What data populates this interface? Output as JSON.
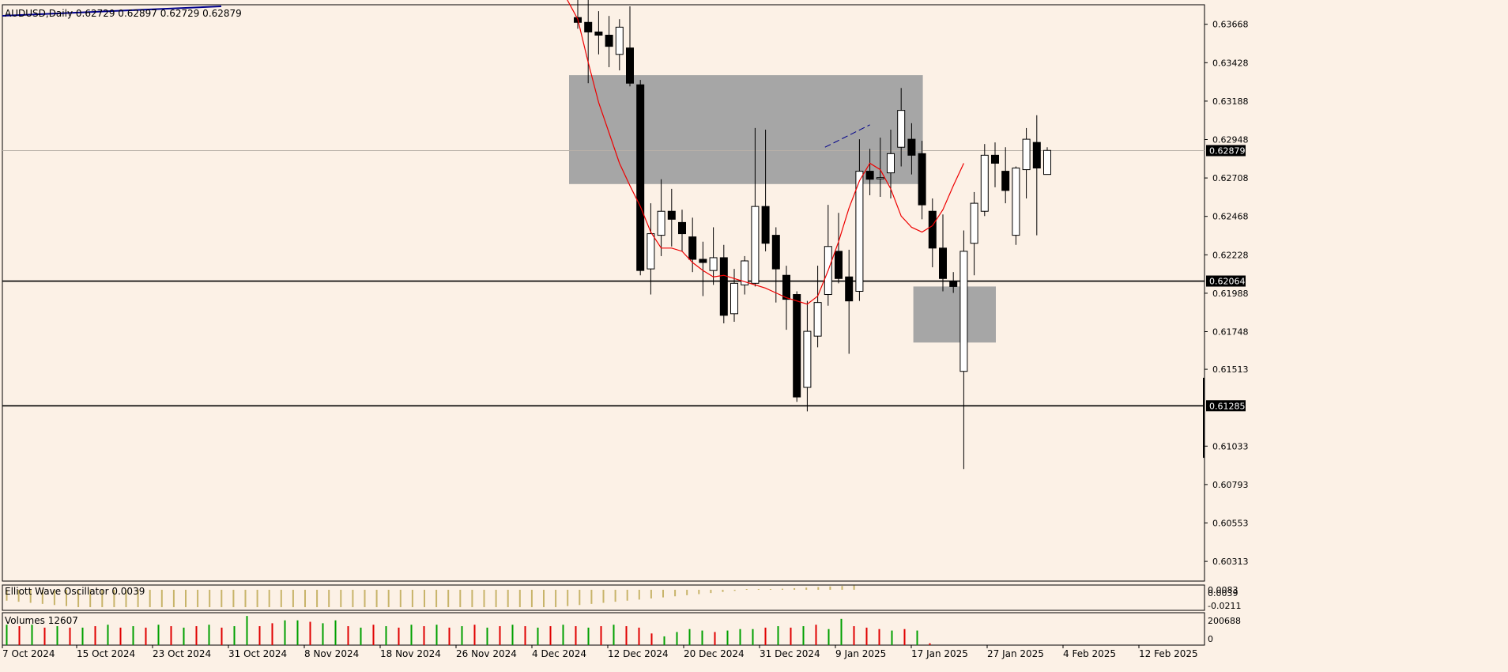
{
  "header": {
    "text": "AUDUSD,Daily  0.62729 0.62897 0.62729 0.62879"
  },
  "colors": {
    "background": "#fcf1e6",
    "frame": "#000000",
    "bull_fill": "#ffffff",
    "bear_fill": "#000000",
    "ma_line": "#ee0000",
    "zone_fill": "#a6a6a6",
    "trend_line": "#00008b",
    "ewo_bar": "#c8b46a",
    "vol_up": "#00a000",
    "vol_down": "#e00000",
    "price_label_bg": "#000000",
    "price_label_text": "#ffffff"
  },
  "chart_data": [
    {
      "type": "candlestick",
      "symbol": "AUDUSD",
      "timeframe": "Daily",
      "ylim": [
        0.6019,
        0.6379
      ],
      "price_axis_ticks": [
        "0.63668",
        "0.63428",
        "0.63188",
        "0.62948",
        "0.62708",
        "0.62468",
        "0.62228",
        "0.61988",
        "0.61748",
        "0.61513",
        "0.61033",
        "0.60793",
        "0.60553",
        "0.60313"
      ],
      "highlighted_prices": [
        "0.62879",
        "0.62064",
        "0.61285"
      ],
      "current_price": 0.62879,
      "horizontal_lines": [
        0.62064,
        0.61285
      ],
      "zones": [
        {
          "from_index": 0,
          "to_index": 33,
          "low": 0.6267,
          "high": 0.6335
        },
        {
          "from_index": 33,
          "to_index": 40,
          "low": 0.6168,
          "high": 0.6203
        }
      ],
      "trend_segment": {
        "from": [
          24,
          0.629
        ],
        "to": [
          28,
          0.6304
        ]
      },
      "date_labels": [
        "7 Oct 2024",
        "15 Oct 2024",
        "23 Oct 2024",
        "31 Oct 2024",
        "8 Nov 2024",
        "18 Nov 2024",
        "26 Nov 2024",
        "4 Dec 2024",
        "12 Dec 2024",
        "20 Dec 2024",
        "31 Dec 2024",
        "9 Jan 2025",
        "17 Jan 2025",
        "27 Jan 2025",
        "4 Feb 2025",
        "12 Feb 2025"
      ],
      "ohlc": [
        [
          0.6371,
          0.6387,
          0.6364,
          0.6368
        ],
        [
          0.6368,
          0.6388,
          0.633,
          0.6362
        ],
        [
          0.6362,
          0.6375,
          0.6348,
          0.636
        ],
        [
          0.636,
          0.6372,
          0.634,
          0.6353
        ],
        [
          0.6348,
          0.637,
          0.6338,
          0.6365
        ],
        [
          0.6352,
          0.6378,
          0.6328,
          0.633
        ],
        [
          0.6329,
          0.6332,
          0.621,
          0.6213
        ],
        [
          0.6214,
          0.6255,
          0.6198,
          0.6236
        ],
        [
          0.6235,
          0.627,
          0.6222,
          0.625
        ],
        [
          0.625,
          0.6264,
          0.6228,
          0.6245
        ],
        [
          0.6243,
          0.6251,
          0.6225,
          0.6236
        ],
        [
          0.6234,
          0.6246,
          0.6212,
          0.622
        ],
        [
          0.622,
          0.6231,
          0.6197,
          0.6218
        ],
        [
          0.6213,
          0.624,
          0.6204,
          0.6221
        ],
        [
          0.6221,
          0.6229,
          0.618,
          0.6185
        ],
        [
          0.6186,
          0.6214,
          0.6181,
          0.6205
        ],
        [
          0.6204,
          0.6222,
          0.6198,
          0.6219
        ],
        [
          0.6205,
          0.6302,
          0.6203,
          0.6253
        ],
        [
          0.6253,
          0.6301,
          0.6225,
          0.623
        ],
        [
          0.6235,
          0.624,
          0.6193,
          0.6214
        ],
        [
          0.621,
          0.6216,
          0.6176,
          0.6195
        ],
        [
          0.6198,
          0.62,
          0.6131,
          0.6134
        ],
        [
          0.614,
          0.6194,
          0.6125,
          0.6175
        ],
        [
          0.6172,
          0.6216,
          0.6165,
          0.6193
        ],
        [
          0.6198,
          0.6254,
          0.6191,
          0.6228
        ],
        [
          0.6225,
          0.6249,
          0.6205,
          0.6208
        ],
        [
          0.6209,
          0.6226,
          0.6161,
          0.6194
        ],
        [
          0.62,
          0.6295,
          0.6194,
          0.6275
        ],
        [
          0.6275,
          0.6289,
          0.626,
          0.627
        ],
        [
          0.6271,
          0.6296,
          0.6259,
          0.6271
        ],
        [
          0.6274,
          0.6301,
          0.6258,
          0.6286
        ],
        [
          0.629,
          0.6327,
          0.6278,
          0.6313
        ],
        [
          0.6295,
          0.6305,
          0.6273,
          0.6285
        ],
        [
          0.6286,
          0.6294,
          0.6245,
          0.6254
        ],
        [
          0.625,
          0.6258,
          0.6215,
          0.6227
        ],
        [
          0.6227,
          0.6248,
          0.62,
          0.6208
        ],
        [
          0.6206,
          0.6212,
          0.6199,
          0.6203
        ],
        [
          0.615,
          0.6238,
          0.6089,
          0.6225
        ],
        [
          0.623,
          0.6262,
          0.621,
          0.6255
        ],
        [
          0.625,
          0.6292,
          0.6247,
          0.6285
        ],
        [
          0.6285,
          0.6293,
          0.6265,
          0.628
        ],
        [
          0.6275,
          0.629,
          0.6255,
          0.6263
        ],
        [
          0.6235,
          0.6278,
          0.6229,
          0.6277
        ],
        [
          0.6276,
          0.6302,
          0.6258,
          0.6295
        ],
        [
          0.6293,
          0.631,
          0.6235,
          0.6277
        ],
        [
          0.6273,
          0.629,
          0.6273,
          0.6288
        ]
      ],
      "ma_line": [
        [
          -1,
          0.6382
        ],
        [
          0,
          0.637
        ],
        [
          1,
          0.6343
        ],
        [
          2,
          0.6318
        ],
        [
          3,
          0.6299
        ],
        [
          4,
          0.628
        ],
        [
          5,
          0.6266
        ],
        [
          6,
          0.6253
        ],
        [
          7,
          0.6237
        ],
        [
          8,
          0.6227
        ],
        [
          9,
          0.6227
        ],
        [
          10,
          0.6225
        ],
        [
          11,
          0.6218
        ],
        [
          12,
          0.6213
        ],
        [
          13,
          0.6209
        ],
        [
          14,
          0.621
        ],
        [
          15,
          0.6208
        ],
        [
          16,
          0.6206
        ],
        [
          17,
          0.6204
        ],
        [
          18,
          0.6202
        ],
        [
          19,
          0.6199
        ],
        [
          20,
          0.6196
        ],
        [
          21,
          0.6194
        ],
        [
          22,
          0.6192
        ],
        [
          23,
          0.6197
        ],
        [
          24,
          0.6213
        ],
        [
          25,
          0.6231
        ],
        [
          26,
          0.6252
        ],
        [
          27,
          0.6269
        ],
        [
          28,
          0.628
        ],
        [
          29,
          0.6276
        ],
        [
          30,
          0.6264
        ],
        [
          31,
          0.6247
        ],
        [
          32,
          0.624
        ],
        [
          33,
          0.6237
        ],
        [
          34,
          0.6241
        ],
        [
          35,
          0.6251
        ],
        [
          36,
          0.6266
        ],
        [
          37,
          0.628
        ]
      ]
    },
    {
      "type": "bar",
      "indicator": "Elliott Wave Oscillator",
      "label": "Elliott Wave Oscillator 0.0039",
      "axis_ticks": [
        "0.0083",
        "0.0039",
        "-0.0211"
      ],
      "ylim": [
        -0.0211,
        0.0083
      ],
      "values": [
        -0.01,
        -0.011,
        -0.012,
        -0.013,
        -0.014,
        -0.015,
        -0.016,
        -0.016,
        -0.016,
        -0.016,
        -0.016,
        -0.016,
        -0.016,
        -0.016,
        -0.016,
        -0.016,
        -0.016,
        -0.016,
        -0.016,
        -0.016,
        -0.016,
        -0.016,
        -0.016,
        -0.016,
        -0.016,
        -0.016,
        -0.016,
        -0.016,
        -0.016,
        -0.016,
        -0.016,
        -0.016,
        -0.016,
        -0.016,
        -0.016,
        -0.016,
        -0.016,
        -0.016,
        -0.016,
        -0.016,
        -0.016,
        -0.016,
        -0.016,
        -0.016,
        -0.016,
        -0.016,
        -0.016,
        -0.015,
        -0.014,
        -0.013,
        -0.012,
        -0.011,
        -0.01,
        -0.009,
        -0.008,
        -0.007,
        -0.006,
        -0.005,
        -0.004,
        -0.003,
        -0.002,
        -0.001,
        0.0,
        0.0,
        0.0005,
        0.001,
        0.0015,
        0.002,
        0.0025,
        0.003,
        0.0035,
        0.0039
      ]
    },
    {
      "type": "bar",
      "indicator": "Volumes",
      "label": "Volumes 12607",
      "axis_ticks": [
        "200688",
        "0"
      ],
      "ylim": [
        0,
        200688
      ],
      "values": [
        [
          140000,
          "up"
        ],
        [
          130000,
          "down"
        ],
        [
          140000,
          "up"
        ],
        [
          120000,
          "down"
        ],
        [
          130000,
          "up"
        ],
        [
          120000,
          "down"
        ],
        [
          120000,
          "up"
        ],
        [
          130000,
          "down"
        ],
        [
          140000,
          "up"
        ],
        [
          120000,
          "down"
        ],
        [
          130000,
          "up"
        ],
        [
          120000,
          "down"
        ],
        [
          140000,
          "up"
        ],
        [
          130000,
          "down"
        ],
        [
          120000,
          "up"
        ],
        [
          130000,
          "down"
        ],
        [
          140000,
          "up"
        ],
        [
          120000,
          "down"
        ],
        [
          130000,
          "up"
        ],
        [
          200000,
          "up"
        ],
        [
          130000,
          "down"
        ],
        [
          150000,
          "down"
        ],
        [
          170000,
          "up"
        ],
        [
          170000,
          "up"
        ],
        [
          160000,
          "down"
        ],
        [
          150000,
          "up"
        ],
        [
          170000,
          "up"
        ],
        [
          130000,
          "down"
        ],
        [
          120000,
          "up"
        ],
        [
          140000,
          "down"
        ],
        [
          130000,
          "up"
        ],
        [
          120000,
          "down"
        ],
        [
          140000,
          "up"
        ],
        [
          130000,
          "down"
        ],
        [
          140000,
          "up"
        ],
        [
          120000,
          "down"
        ],
        [
          130000,
          "up"
        ],
        [
          140000,
          "down"
        ],
        [
          120000,
          "up"
        ],
        [
          130000,
          "down"
        ],
        [
          140000,
          "up"
        ],
        [
          130000,
          "down"
        ],
        [
          120000,
          "up"
        ],
        [
          130000,
          "down"
        ],
        [
          140000,
          "up"
        ],
        [
          130000,
          "down"
        ],
        [
          120000,
          "up"
        ],
        [
          130000,
          "down"
        ],
        [
          140000,
          "up"
        ],
        [
          130000,
          "down"
        ],
        [
          120000,
          "down"
        ],
        [
          80000,
          "down"
        ],
        [
          60000,
          "up"
        ],
        [
          90000,
          "up"
        ],
        [
          110000,
          "up"
        ],
        [
          100000,
          "up"
        ],
        [
          90000,
          "down"
        ],
        [
          100000,
          "up"
        ],
        [
          110000,
          "up"
        ],
        [
          110000,
          "up"
        ],
        [
          120000,
          "down"
        ],
        [
          130000,
          "up"
        ],
        [
          120000,
          "down"
        ],
        [
          130000,
          "up"
        ],
        [
          140000,
          "down"
        ],
        [
          110000,
          "up"
        ],
        [
          180000,
          "up"
        ],
        [
          130000,
          "down"
        ],
        [
          120000,
          "down"
        ],
        [
          110000,
          "down"
        ],
        [
          100000,
          "up"
        ],
        [
          110000,
          "down"
        ],
        [
          100000,
          "up"
        ],
        [
          12607,
          "down"
        ]
      ]
    }
  ]
}
